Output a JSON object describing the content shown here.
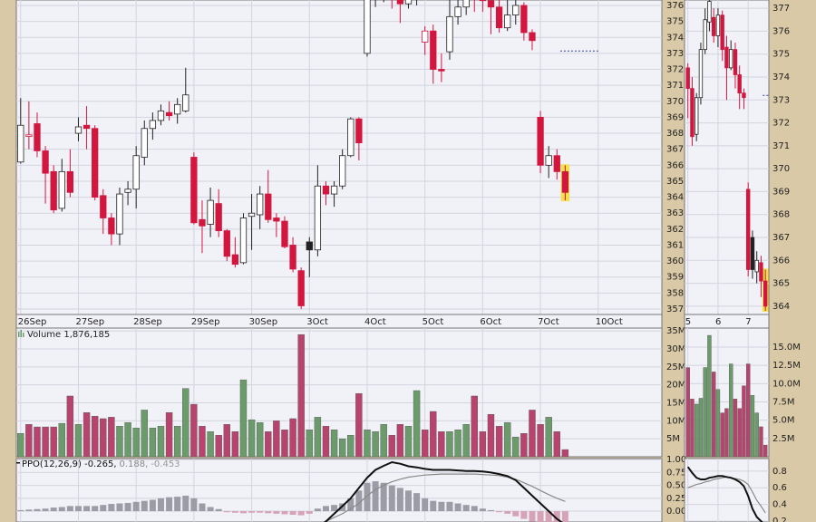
{
  "chart_data": [
    {
      "type": "candlestick",
      "categories": [
        "26Sep",
        null,
        null,
        null,
        null,
        null,
        null,
        "27Sep",
        null,
        null,
        null,
        null,
        null,
        null,
        "28Sep",
        null,
        null,
        null,
        null,
        null,
        null,
        "29Sep",
        null,
        null,
        null,
        null,
        null,
        null,
        "30Sep",
        null,
        null,
        null,
        null,
        null,
        null,
        "3Oct",
        null,
        null,
        null,
        null,
        null,
        null,
        "4Oct",
        null,
        null,
        null,
        null,
        null,
        null,
        "5Oct",
        null,
        null,
        null,
        null,
        null,
        null,
        "6Oct",
        null,
        null,
        null,
        null,
        null,
        null,
        "7Oct",
        null,
        null,
        null
      ],
      "future_categories": [
        null,
        null,
        null,
        "10Oct"
      ],
      "open": [
        366.2,
        367.8,
        368.6,
        366.9,
        365.6,
        363.3,
        365.6,
        368,
        368.5,
        368.3,
        364.1,
        362.7,
        361.7,
        364.3,
        364.5,
        366.5,
        368.3,
        368.8,
        369.3,
        369.2,
        369.4,
        366.5,
        362.6,
        362.3,
        363.6,
        361.9,
        360.4,
        359.9,
        362.8,
        362.9,
        364.2,
        362.7,
        362.5,
        361,
        359.4,
        361.2,
        360.7,
        364.7,
        364.2,
        364.7,
        366.6,
        368.9,
        373,
        376.4,
        376.6,
        376.8,
        376.4,
        376.1,
        376.5,
        373.7,
        374.4,
        372,
        373.1,
        375.3,
        375.9,
        376.6,
        376.5,
        376.3,
        375.9,
        374.6,
        375.4,
        376,
        374.3,
        369,
        366,
        366.6,
        365.6
      ],
      "close": [
        368.5,
        367.9,
        366.9,
        365.5,
        363.2,
        365.6,
        364.3,
        368.4,
        368.3,
        364,
        362.7,
        361.7,
        364.2,
        364.5,
        366.6,
        368.3,
        368.8,
        369.4,
        369.1,
        369.8,
        370.4,
        362.4,
        362.2,
        363.8,
        361.9,
        360.3,
        359.8,
        362.7,
        363,
        364.2,
        362.6,
        362.5,
        360.9,
        359.5,
        357.2,
        360.7,
        364.7,
        364.2,
        364.7,
        366.6,
        368.9,
        367.4,
        376.4,
        376.6,
        377,
        376.4,
        376.1,
        376.5,
        377,
        374.4,
        372,
        371.9,
        375.3,
        375.9,
        376.6,
        376.5,
        376.3,
        375.9,
        374.6,
        375.4,
        376,
        374.3,
        373.8,
        366,
        366.6,
        365.6,
        364.3
      ],
      "high": [
        370.2,
        370,
        369.3,
        367.2,
        366,
        366.4,
        367,
        369,
        369.7,
        368.5,
        364.5,
        363,
        364.6,
        365,
        367.2,
        368.8,
        369.3,
        369.8,
        370,
        370.2,
        372.1,
        366.8,
        363.8,
        364.6,
        364.5,
        362,
        361.5,
        363,
        364.2,
        364.7,
        365.7,
        363,
        362.8,
        361.5,
        359.6,
        361.5,
        366,
        365,
        365,
        367,
        369,
        369,
        376.6,
        377,
        377.5,
        377,
        376.8,
        377,
        377.5,
        374.7,
        374.8,
        373,
        376.7,
        376.4,
        377,
        377,
        377,
        376.8,
        377,
        376.4,
        376.6,
        376.2,
        374.5,
        369.4,
        367.2,
        367,
        366
      ],
      "low": [
        366.1,
        367,
        366.5,
        363.6,
        363,
        363.1,
        364,
        367.5,
        367,
        363.8,
        361.7,
        361,
        361,
        363.5,
        363.3,
        366,
        367.6,
        368.5,
        368.8,
        368.6,
        369.3,
        362.3,
        360.5,
        361.5,
        361.5,
        360,
        359.6,
        359.8,
        360.7,
        362,
        362.4,
        361.5,
        360.8,
        359.3,
        357,
        359,
        360.3,
        363.5,
        363.4,
        364.5,
        366.5,
        366.3,
        372.8,
        375.9,
        376.2,
        375.8,
        374.9,
        375.8,
        376,
        372.9,
        371.1,
        371.2,
        372.6,
        374.8,
        375.4,
        375.6,
        375.6,
        374.2,
        374.3,
        374.4,
        374.8,
        373.8,
        373.2,
        365.5,
        365.2,
        365.1,
        363.8
      ],
      "reference_line": 373.15,
      "ylim": [
        356.66,
        376.34
      ],
      "yticks": [
        357,
        358,
        359,
        360,
        361,
        362,
        363,
        364,
        365,
        366,
        367,
        368,
        369,
        370,
        371,
        372,
        373,
        374,
        375,
        376
      ],
      "colors": {
        "up": "#222222",
        "down": "#d3163e",
        "highlight": "#f3e04a",
        "reference": "#3040a0"
      }
    },
    {
      "type": "volume",
      "title": "Volume 1,876,185",
      "values": [
        6.5,
        9,
        8.3,
        8.3,
        8.3,
        9.3,
        16.9,
        9,
        12.3,
        11.3,
        10.6,
        11,
        8.5,
        9.5,
        8,
        13,
        8,
        8.5,
        12.3,
        8.5,
        19,
        14.6,
        8.5,
        7,
        6,
        9,
        7,
        21.4,
        10.3,
        9.5,
        7,
        10,
        7.5,
        10.6,
        34,
        7.5,
        11,
        8.5,
        7.5,
        5,
        6,
        17.6,
        7.5,
        7,
        9,
        6,
        9,
        8.5,
        18.4,
        7.5,
        12.6,
        7,
        7,
        7.5,
        9,
        16.9,
        7,
        11.8,
        8.5,
        9.5,
        5.5,
        6.5,
        13,
        9,
        11,
        7,
        2
      ],
      "ylim": [
        0,
        35.8
      ],
      "yticks": [
        {
          "value": 5,
          "label": "5M"
        },
        {
          "value": 10,
          "label": "10M"
        },
        {
          "value": 15,
          "label": "15M"
        },
        {
          "value": 20,
          "label": "20M"
        },
        {
          "value": 25,
          "label": "25M"
        },
        {
          "value": 30,
          "label": "30M"
        },
        {
          "value": 35,
          "label": "35M"
        }
      ],
      "colors": {
        "up": "#6b9a6b",
        "down": "#b8436d"
      }
    },
    {
      "type": "ppo",
      "title": [
        "PPO(12,26,9) -0.265,",
        "0.188,",
        "-0.453"
      ],
      "ppo": [
        null,
        null,
        null,
        null,
        null,
        null,
        null,
        null,
        null,
        null,
        null,
        null,
        null,
        null,
        null,
        null,
        null,
        null,
        null,
        null,
        null,
        null,
        null,
        null,
        null,
        null,
        null,
        null,
        null,
        null,
        null,
        null,
        null,
        null,
        null,
        -0.4,
        -0.3,
        -0.2,
        -0.05,
        0.1,
        0.25,
        0.45,
        0.65,
        0.8,
        0.88,
        0.95,
        0.92,
        0.87,
        0.85,
        0.82,
        0.8,
        0.8,
        0.8,
        0.79,
        0.78,
        0.78,
        0.77,
        0.75,
        0.72,
        0.68,
        0.6,
        0.45,
        0.3,
        0.15,
        0.0,
        -0.15,
        -0.265
      ],
      "signal": [
        null,
        null,
        null,
        null,
        null,
        null,
        null,
        null,
        null,
        null,
        null,
        null,
        null,
        null,
        null,
        null,
        null,
        null,
        null,
        null,
        null,
        null,
        null,
        null,
        null,
        null,
        null,
        null,
        null,
        null,
        null,
        null,
        null,
        null,
        null,
        -0.3,
        -0.25,
        -0.2,
        -0.12,
        -0.05,
        0.05,
        0.15,
        0.3,
        0.42,
        0.5,
        0.57,
        0.62,
        0.66,
        0.68,
        0.7,
        0.71,
        0.72,
        0.72,
        0.72,
        0.72,
        0.72,
        0.71,
        0.7,
        0.69,
        0.66,
        0.62,
        0.55,
        0.48,
        0.4,
        0.32,
        0.25,
        0.188
      ],
      "histogram": [
        0.02,
        0.03,
        0.04,
        0.05,
        0.07,
        0.08,
        0.1,
        0.1,
        0.1,
        0.1,
        0.12,
        0.14,
        0.15,
        0.16,
        0.18,
        0.2,
        0.22,
        0.25,
        0.27,
        0.28,
        0.3,
        0.25,
        0.15,
        0.08,
        0.04,
        -0.02,
        -0.03,
        -0.04,
        -0.03,
        -0.03,
        -0.04,
        -0.05,
        -0.06,
        -0.07,
        -0.08,
        -0.05,
        0.05,
        0.1,
        0.12,
        0.15,
        0.25,
        0.4,
        0.55,
        0.58,
        0.55,
        0.5,
        0.45,
        0.4,
        0.35,
        0.25,
        0.2,
        0.18,
        0.18,
        0.15,
        0.12,
        0.1,
        0.05,
        0.02,
        -0.02,
        -0.05,
        -0.1,
        -0.15,
        -0.2,
        -0.3,
        -0.35,
        -0.4,
        -0.453
      ],
      "ylim": [
        -0.21,
        1.02
      ],
      "yticks": [
        {
          "value": 0,
          "label": "0.00"
        },
        {
          "value": 0.25,
          "label": "0.25"
        },
        {
          "value": 0.5,
          "label": "0.50"
        },
        {
          "value": 0.75,
          "label": "0.75"
        },
        {
          "value": 1,
          "label": "1.00"
        }
      ],
      "colors": {
        "ppo": "#111111",
        "signal": "#8a8a8a",
        "hist_up": "#9c9ca6",
        "hist_down": "#d6a2b6"
      }
    },
    {
      "type": "candlestick",
      "categories": [
        "5",
        null,
        null,
        null,
        null,
        null,
        null,
        "6",
        null,
        null,
        null,
        null,
        null,
        null,
        "7",
        null,
        null,
        null,
        null
      ],
      "open": [
        374.4,
        373.5,
        371.5,
        373.1,
        375.2,
        376.4,
        376.6,
        375.8,
        376.7,
        375.3,
        374.4,
        375.2,
        374.1,
        373.3,
        369.1,
        367,
        365.5,
        365.9,
        365.1
      ],
      "close": [
        373.5,
        371.4,
        373.1,
        375.2,
        376.5,
        377.3,
        375.8,
        376.7,
        375.2,
        374.4,
        375.2,
        374.1,
        373.3,
        373.1,
        365.6,
        365.6,
        366,
        365.1,
        364
      ],
      "high": [
        374.6,
        374,
        373.3,
        375.5,
        377,
        377.5,
        377,
        377,
        376.9,
        375.8,
        375.6,
        375.5,
        374.5,
        373.5,
        369.4,
        367.3,
        366.4,
        366.2,
        365.6
      ],
      "low": [
        372.2,
        371,
        371.2,
        372.8,
        375,
        376,
        375.5,
        375.3,
        374.7,
        373,
        374.3,
        373.5,
        372.6,
        372.6,
        365.3,
        365.2,
        365,
        364.4,
        363.8
      ],
      "reference_line": 373.2,
      "ylim": [
        363.64,
        377.36
      ],
      "yticks": [
        364,
        365,
        366,
        367,
        368,
        369,
        370,
        371,
        372,
        373,
        374,
        375,
        376,
        377
      ],
      "colors": {
        "up": "#222222",
        "down": "#d3163e",
        "highlight": "#f3e04a",
        "reference": "#3040a0"
      }
    },
    {
      "type": "volume",
      "values": [
        12.2,
        7.9,
        7.2,
        8,
        12.2,
        16.6,
        11.6,
        9.2,
        6,
        6.6,
        12.7,
        7.9,
        6.6,
        9.7,
        12.7,
        8.4,
        6,
        4.1,
        1.6
      ],
      "ylim": [
        0,
        17.6
      ],
      "yticks": [
        {
          "value": 2.5,
          "label": "2.5M"
        },
        {
          "value": 5,
          "label": "5.0M"
        },
        {
          "value": 7.5,
          "label": "7.5M"
        },
        {
          "value": 10,
          "label": "10.0M"
        },
        {
          "value": 12.5,
          "label": "12.5M"
        },
        {
          "value": 15,
          "label": "15.0M"
        }
      ],
      "colors": {
        "up": "#6b9a6b",
        "down": "#b8436d"
      }
    },
    {
      "type": "ppo",
      "ppo": [
        0.85,
        0.78,
        0.72,
        0.7,
        0.7,
        0.72,
        0.73,
        0.74,
        0.74,
        0.73,
        0.72,
        0.7,
        0.67,
        0.62,
        0.5,
        0.35,
        0.25,
        0.2,
        0.15
      ],
      "signal": [
        0.6,
        0.62,
        0.64,
        0.65,
        0.67,
        0.68,
        0.7,
        0.71,
        0.72,
        0.73,
        0.72,
        0.71,
        0.7,
        0.68,
        0.64,
        0.55,
        0.45,
        0.38,
        0.3
      ],
      "ylim": [
        0.19,
        0.95
      ],
      "yticks": [
        0.2,
        0.4,
        0.6,
        0.8
      ],
      "colors": {
        "ppo": "#111111",
        "signal": "#8a8a8a"
      }
    }
  ]
}
